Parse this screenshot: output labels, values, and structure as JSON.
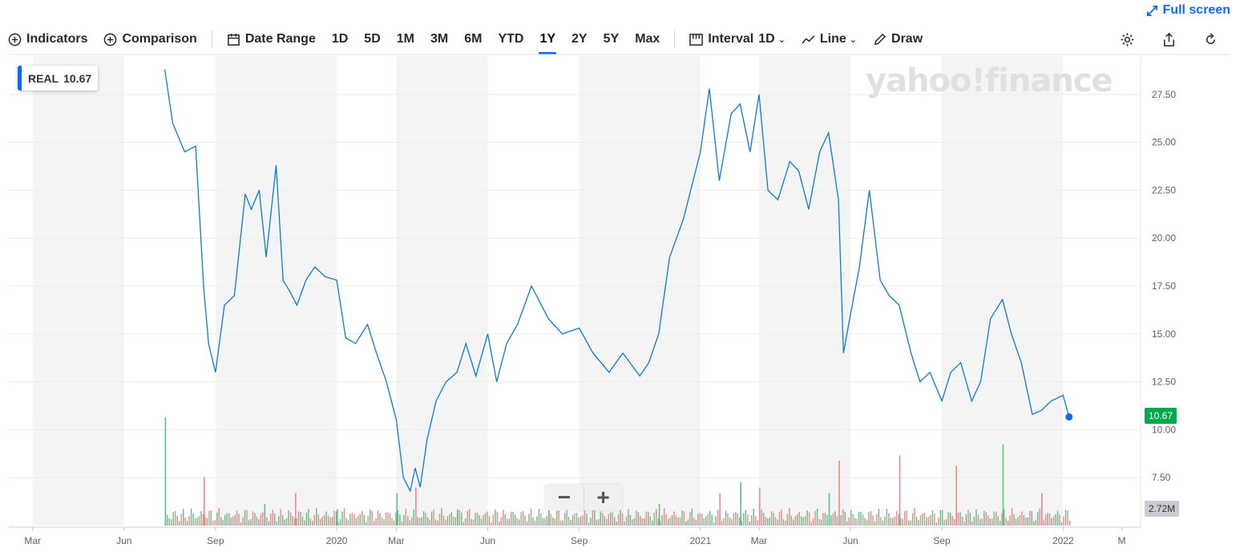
{
  "fullscreen_label": "Full screen",
  "toolbar": {
    "indicators": "Indicators",
    "comparison": "Comparison",
    "date_range": "Date Range",
    "ranges": [
      "1D",
      "5D",
      "1M",
      "3M",
      "6M",
      "YTD",
      "1Y",
      "2Y",
      "5Y",
      "Max"
    ],
    "active_range": "1Y",
    "interval_label": "Interval",
    "interval_value": "1D",
    "line_label": "Line",
    "draw_label": "Draw"
  },
  "ticker": {
    "symbol": "REAL",
    "price": "10.67"
  },
  "watermark": "yahoo!finance",
  "price_tag": "10.67",
  "volume_tag": "2.72M",
  "zoom": {
    "minus": "−",
    "plus": "+"
  },
  "colors": {
    "line": "#0a7ad6",
    "up_volume": "#5cc08b",
    "down_volume": "#f0858a",
    "band": "#f4f4f4",
    "accent": "#0f69ff",
    "price_tag": "#00a84f"
  },
  "chart_data": {
    "type": "line",
    "series": [
      {
        "name": "REAL",
        "x": [
          "2019-07-12",
          "2019-07-20",
          "2019-08-01",
          "2019-08-12",
          "2019-08-20",
          "2019-08-25",
          "2019-09-01",
          "2019-09-10",
          "2019-09-20",
          "2019-10-01",
          "2019-10-07",
          "2019-10-15",
          "2019-10-22",
          "2019-11-01",
          "2019-11-08",
          "2019-11-15",
          "2019-11-22",
          "2019-12-01",
          "2019-12-10",
          "2019-12-20",
          "2020-01-01",
          "2020-01-10",
          "2020-01-20",
          "2020-02-01",
          "2020-02-10",
          "2020-02-20",
          "2020-03-01",
          "2020-03-08",
          "2020-03-15",
          "2020-03-20",
          "2020-03-25",
          "2020-04-01",
          "2020-04-10",
          "2020-04-20",
          "2020-05-01",
          "2020-05-10",
          "2020-05-20",
          "2020-06-01",
          "2020-06-10",
          "2020-06-20",
          "2020-07-01",
          "2020-07-15",
          "2020-08-01",
          "2020-08-15",
          "2020-09-01",
          "2020-09-15",
          "2020-10-01",
          "2020-10-15",
          "2020-11-01",
          "2020-11-10",
          "2020-11-20",
          "2020-12-01",
          "2020-12-15",
          "2021-01-01",
          "2021-01-10",
          "2021-01-20",
          "2021-02-01",
          "2021-02-10",
          "2021-02-20",
          "2021-03-01",
          "2021-03-10",
          "2021-03-20",
          "2021-04-01",
          "2021-04-10",
          "2021-04-20",
          "2021-05-01",
          "2021-05-10",
          "2021-05-20",
          "2021-05-25",
          "2021-06-01",
          "2021-06-10",
          "2021-06-20",
          "2021-07-01",
          "2021-07-10",
          "2021-07-20",
          "2021-08-01",
          "2021-08-10",
          "2021-08-20",
          "2021-09-01",
          "2021-09-10",
          "2021-09-20",
          "2021-10-01",
          "2021-10-10",
          "2021-10-20",
          "2021-11-01",
          "2021-11-10",
          "2021-11-20",
          "2021-12-01",
          "2021-12-10",
          "2021-12-20",
          "2022-01-01",
          "2022-01-07"
        ],
        "y": [
          28.8,
          26.0,
          24.5,
          24.8,
          17.5,
          14.5,
          13.0,
          16.5,
          17.0,
          22.3,
          21.5,
          22.5,
          19.0,
          23.8,
          17.8,
          17.2,
          16.5,
          17.8,
          18.5,
          18.0,
          17.8,
          14.8,
          14.5,
          15.5,
          14.0,
          12.5,
          10.5,
          7.5,
          6.8,
          8.0,
          7.0,
          9.5,
          11.5,
          12.5,
          13.0,
          14.5,
          12.8,
          15.0,
          12.5,
          14.5,
          15.5,
          17.5,
          15.8,
          15.0,
          15.3,
          14.0,
          13.0,
          14.0,
          12.8,
          13.5,
          15.0,
          19.0,
          21.0,
          24.5,
          27.8,
          23.0,
          26.5,
          27.0,
          24.5,
          27.5,
          22.5,
          22.0,
          24.0,
          23.5,
          21.5,
          24.5,
          25.5,
          22.0,
          14.0,
          16.0,
          18.5,
          22.5,
          17.8,
          17.0,
          16.5,
          14.0,
          12.5,
          13.0,
          11.5,
          13.0,
          13.5,
          11.5,
          12.5,
          15.8,
          16.8,
          15.0,
          13.5,
          10.8,
          11.0,
          11.5,
          11.8,
          10.67
        ]
      }
    ],
    "ylim": [
      5,
      29.5
    ],
    "y_ticks": [
      "7.50",
      "10.00",
      "12.50",
      "15.00",
      "17.50",
      "20.00",
      "22.50",
      "25.00",
      "27.50"
    ],
    "x_tick_labels": [
      "Mar",
      "Jun",
      "Sep",
      "2020",
      "Mar",
      "Jun",
      "Sep",
      "2021",
      "Mar",
      "Jun",
      "Sep",
      "2022",
      "M"
    ],
    "volume": [
      {
        "date": "2019-07-12",
        "v": 1.0,
        "up": true
      },
      {
        "date": "2019-08-20",
        "v": 0.45,
        "up": false
      },
      {
        "date": "2019-10-20",
        "v": 0.2,
        "up": true
      },
      {
        "date": "2019-11-20",
        "v": 0.3,
        "up": false
      },
      {
        "date": "2020-01-01",
        "v": 0.15,
        "up": true
      },
      {
        "date": "2020-03-01",
        "v": 0.3,
        "up": true
      },
      {
        "date": "2020-03-20",
        "v": 0.35,
        "up": false
      },
      {
        "date": "2020-05-01",
        "v": 0.15,
        "up": true
      },
      {
        "date": "2020-08-01",
        "v": 0.15,
        "up": true
      },
      {
        "date": "2020-11-20",
        "v": 0.2,
        "up": true
      },
      {
        "date": "2021-01-20",
        "v": 0.3,
        "up": false
      },
      {
        "date": "2021-02-10",
        "v": 0.4,
        "up": true
      },
      {
        "date": "2021-03-01",
        "v": 0.35,
        "up": false
      },
      {
        "date": "2021-05-10",
        "v": 0.3,
        "up": true
      },
      {
        "date": "2021-05-20",
        "v": 0.6,
        "up": false
      },
      {
        "date": "2021-07-20",
        "v": 0.65,
        "up": false
      },
      {
        "date": "2021-09-15",
        "v": 0.55,
        "up": false
      },
      {
        "date": "2021-11-01",
        "v": 0.75,
        "up": true
      },
      {
        "date": "2021-12-10",
        "v": 0.3,
        "up": false
      }
    ]
  }
}
